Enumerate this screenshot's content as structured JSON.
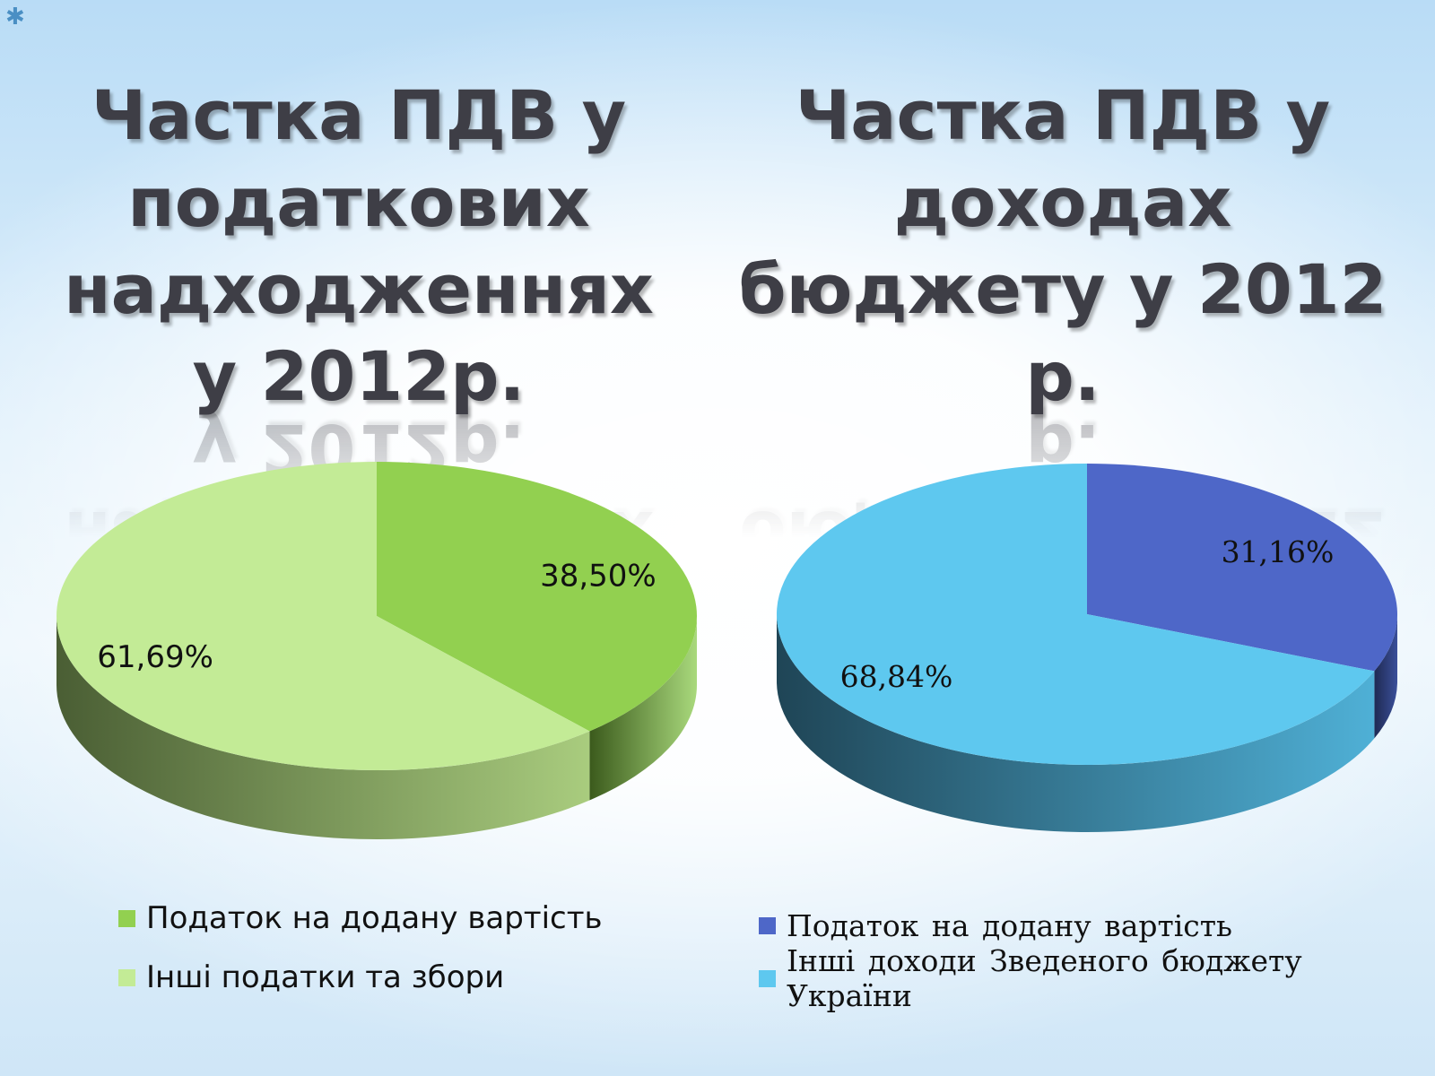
{
  "decor": {
    "star_icon": "star-icon"
  },
  "chart_data": [
    {
      "type": "pie",
      "title": "Частка ПДВ у податкових надходженнях у 2012р.",
      "legend_position": "bottom",
      "slices": [
        {
          "label": "Податок на додану вартість",
          "value": 38.5,
          "value_label": "38,50%",
          "color": "#92d050",
          "dark": "#3b5a1c",
          "light": "#a9d97c"
        },
        {
          "label": "Інші податки та збори",
          "value": 61.69,
          "value_label": "61,69%",
          "color": "#c3eb96",
          "dark": "#4a5e34",
          "light": "#a9cc7e"
        }
      ]
    },
    {
      "type": "pie",
      "title": "Частка ПДВ у доходах бюджету у 2012 р.",
      "legend_position": "bottom",
      "slices": [
        {
          "label": "Податок на додану вартість",
          "value": 31.16,
          "value_label": "31,16%",
          "color": "#4e67c8",
          "dark": "#1f2a52",
          "light": "#3a4f9a"
        },
        {
          "label": "Інші доходи Зведеного бюджету України",
          "value": 68.84,
          "value_label": "68,84%",
          "color": "#5ec8ef",
          "dark": "#1f4556",
          "light": "#4fb0d6"
        }
      ]
    }
  ]
}
